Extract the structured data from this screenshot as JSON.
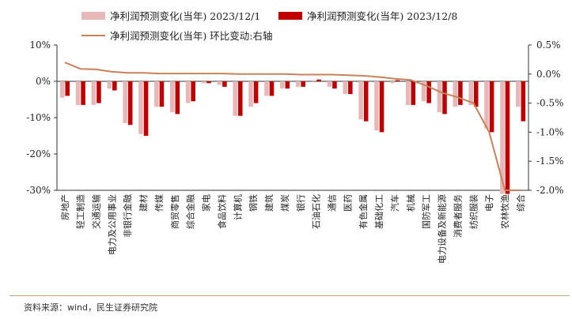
{
  "chart_data": {
    "type": "bar",
    "colors": {
      "series1": "#e8b7b7",
      "series2": "#c00000",
      "line": "#c8825a"
    },
    "categories": [
      "房地产",
      "轻工制造",
      "交通运输",
      "电力及公用事业",
      "非银行金融",
      "建材",
      "传媒",
      "商贸零售",
      "综合金融",
      "家电",
      "食品饮料",
      "计算机",
      "钢铁",
      "建筑",
      "煤炭",
      "银行",
      "石油石化",
      "通信",
      "医药",
      "有色金属",
      "基础化工",
      "汽车",
      "机械",
      "国防军工",
      "电力设备及新能源",
      "消费者服务",
      "纺织服装",
      "电子",
      "农林牧渔",
      "综合"
    ],
    "series": [
      {
        "name": "净利润预测变化(当年) 2023/12/1",
        "axis": "left",
        "values": [
          -4.5,
          -6.5,
          -6.5,
          -2,
          -11.5,
          -14.5,
          -7,
          -8.5,
          -6,
          -0.5,
          -1,
          -9.5,
          -7,
          -4,
          -2,
          -1.5,
          0.3,
          -1.5,
          -3.5,
          -10.5,
          -13.5,
          -0.5,
          -6.5,
          -5.5,
          -8.5,
          -7,
          -6.5,
          -13,
          -31,
          -7
        ]
      },
      {
        "name": "净利润预测变化(当年) 2023/12/8",
        "axis": "left",
        "values": [
          -4,
          -6.5,
          -6,
          -2.5,
          -12,
          -15,
          -7,
          -9,
          -5.5,
          -0.5,
          -1.5,
          -9.5,
          -6,
          -4,
          -2,
          -1.5,
          0.5,
          -2,
          -3.5,
          -11,
          -14,
          0.3,
          -6.5,
          -6,
          -9,
          -6.5,
          -7,
          -14,
          -31,
          -11
        ]
      },
      {
        "name": "净利润预测变化(当年) 环比变动:右轴",
        "axis": "right",
        "type": "line",
        "values": [
          0.2,
          0.09,
          0.08,
          0.04,
          0.02,
          0.02,
          0.01,
          0.01,
          0.01,
          0.01,
          0.01,
          0.0,
          0.0,
          0.0,
          0.0,
          -0.01,
          -0.01,
          -0.01,
          -0.02,
          -0.03,
          -0.05,
          -0.08,
          -0.1,
          -0.2,
          -0.32,
          -0.4,
          -0.5,
          -1.0,
          -2.0,
          -2.0
        ]
      }
    ],
    "ylim": [
      -30,
      10
    ],
    "y_ticks": [
      "10%",
      "0%",
      "-10%",
      "-20%",
      "-30%"
    ],
    "y2lim": [
      -2.0,
      0.5
    ],
    "y2_ticks": [
      "0.5%",
      "0.0%",
      "-0.5%",
      "-1.0%",
      "-1.5%",
      "-2.0%"
    ],
    "legend_position": "top"
  },
  "source": "资料来源：wind，民生证券研究院"
}
